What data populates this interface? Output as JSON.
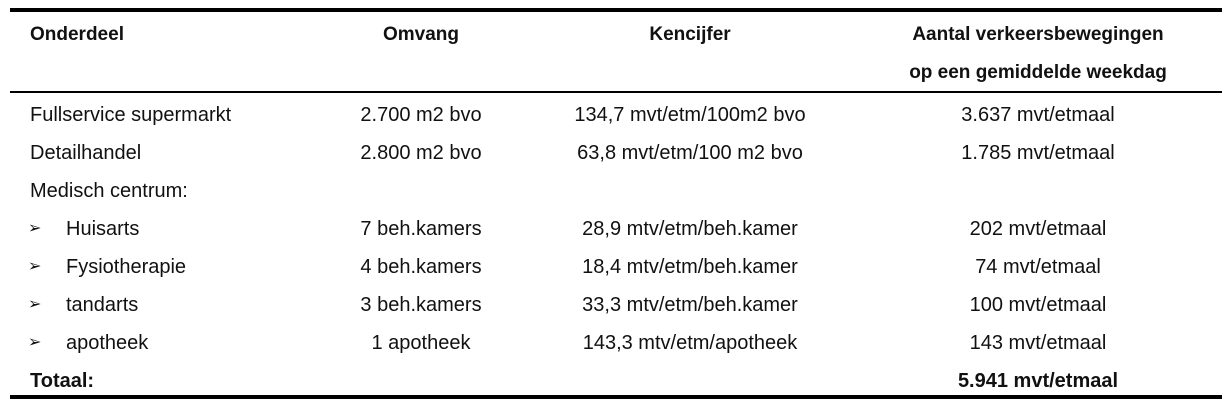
{
  "table": {
    "header": [
      "Onderdeel",
      "Omvang",
      "Kencijfer",
      [
        "Aantal verkeersbewegingen",
        "op een gemiddelde weekdag"
      ]
    ],
    "rows": [
      {
        "cells": [
          "Fullservice supermarkt",
          "2.700 m2 bvo",
          "134,7 mvt/etm/100m2 bvo",
          "3.637 mvt/etmaal"
        ]
      },
      {
        "cells": [
          "Detailhandel",
          "2.800 m2 bvo",
          "63,8 mvt/etm/100 m2 bvo",
          "1.785 mvt/etmaal"
        ]
      },
      {
        "cells": [
          "Medisch centrum:"
        ]
      },
      {
        "bullet": "➢",
        "cells": [
          "Huisarts",
          "7 beh.kamers",
          "28,9 mtv/etm/beh.kamer",
          "202 mvt/etmaal"
        ]
      },
      {
        "bullet": "➢",
        "cells": [
          "Fysiotherapie",
          "4 beh.kamers",
          "18,4 mtv/etm/beh.kamer",
          "74 mvt/etmaal"
        ]
      },
      {
        "bullet": "➢",
        "cells": [
          "tandarts",
          "3 beh.kamers",
          "33,3 mtv/etm/beh.kamer",
          "100 mvt/etmaal"
        ]
      },
      {
        "bullet": "➢",
        "cells": [
          "apotheek",
          "1 apotheek",
          "143,3 mtv/etm/apotheek",
          "143 mvt/etmaal"
        ]
      }
    ],
    "total": {
      "label": "Totaal:",
      "value": "5.941 mvt/etmaal"
    }
  }
}
